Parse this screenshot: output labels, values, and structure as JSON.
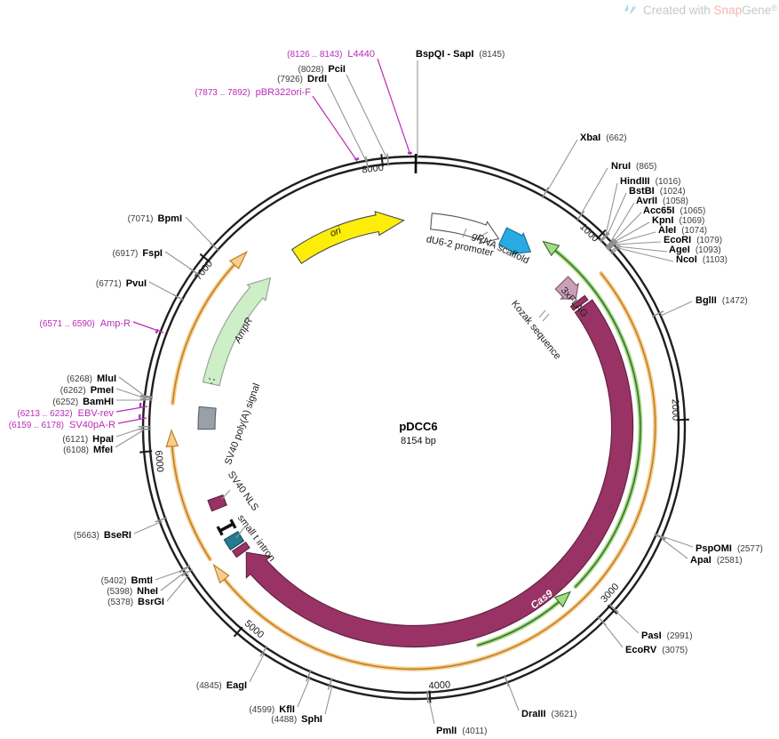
{
  "watermark": {
    "created_with": "Created with ",
    "brand_snap": "Snap",
    "brand_gene": "Gene",
    "registered": "®"
  },
  "plasmid": {
    "name": "pDCC6",
    "size": "8154 bp"
  },
  "ruler": {
    "ticks": [
      "1000",
      "2000",
      "3000",
      "4000",
      "5000",
      "6000",
      "7000",
      "8000"
    ]
  },
  "features": {
    "du6": "dU6-2 promoter",
    "grna": "gRNA scaffold",
    "kozak": "Kozak sequence",
    "flag": "3xFLAG",
    "cas9": "Cas9",
    "small_t": "small t intron",
    "sv40_nls": "SV40 NLS",
    "sv40_polya": "SV40 poly(A) signal",
    "ampr": "AmpR",
    "ori": "ori"
  },
  "sites": {
    "bspqi_sapi": {
      "name": "BspQI - SapI",
      "pos": "(8145)"
    },
    "l4440_note": {
      "name": "L4440",
      "pos": "(8126 .. 8143)"
    },
    "pcii": {
      "name": "PciI",
      "pos": "(8028)"
    },
    "drdi": {
      "name": "DrdI",
      "pos": "(7926)"
    },
    "pbr322": {
      "name": "pBR322ori-F",
      "pos": "(7873 .. 7892)"
    },
    "xbai": {
      "name": "XbaI",
      "pos": "(662)"
    },
    "nrui": {
      "name": "NruI",
      "pos": "(865)"
    },
    "hindiii": {
      "name": "HindIII",
      "pos": "(1016)"
    },
    "bstbi": {
      "name": "BstBI",
      "pos": "(1024)"
    },
    "avrii": {
      "name": "AvrII",
      "pos": "(1058)"
    },
    "acc65i": {
      "name": "Acc65I",
      "pos": "(1065)"
    },
    "kpni": {
      "name": "KpnI",
      "pos": "(1069)"
    },
    "alei": {
      "name": "AleI",
      "pos": "(1074)"
    },
    "ecori": {
      "name": "EcoRI",
      "pos": "(1079)"
    },
    "agei": {
      "name": "AgeI",
      "pos": "(1093)"
    },
    "ncoi": {
      "name": "NcoI",
      "pos": "(1103)"
    },
    "bglii": {
      "name": "BglII",
      "pos": "(1472)"
    },
    "pspomi": {
      "name": "PspOMI",
      "pos": "(2577)"
    },
    "apai": {
      "name": "ApaI",
      "pos": "(2581)"
    },
    "pasi": {
      "name": "PasI",
      "pos": "(2991)"
    },
    "ecorv": {
      "name": "EcoRV",
      "pos": "(3075)"
    },
    "draiii": {
      "name": "DraIII",
      "pos": "(3621)"
    },
    "pmli": {
      "name": "PmlI",
      "pos": "(4011)"
    },
    "sphi": {
      "name": "SphI",
      "pos": "(4488)"
    },
    "kfli": {
      "name": "KflI",
      "pos": "(4599)"
    },
    "eagi": {
      "name": "EagI",
      "pos": "(4845)"
    },
    "bsrgi": {
      "name": "BsrGI",
      "pos": "(5378)"
    },
    "nhei": {
      "name": "NheI",
      "pos": "(5398)"
    },
    "bmti": {
      "name": "BmtI",
      "pos": "(5402)"
    },
    "bseri": {
      "name": "BseRI",
      "pos": "(5663)"
    },
    "mfei": {
      "name": "MfeI",
      "pos": "(6108)"
    },
    "hpai": {
      "name": "HpaI",
      "pos": "(6121)"
    },
    "bamhi": {
      "name": "BamHI",
      "pos": "(6252)"
    },
    "pmei": {
      "name": "PmeI",
      "pos": "(6262)"
    },
    "mlui": {
      "name": "MluI",
      "pos": "(6268)"
    },
    "pvui": {
      "name": "PvuI",
      "pos": "(6771)"
    },
    "fspi": {
      "name": "FspI",
      "pos": "(6917)"
    },
    "bpmi": {
      "name": "BpmI",
      "pos": "(7071)"
    }
  },
  "primers": {
    "l4440": {
      "range": "(8126 .. 8143)",
      "name": "L4440"
    },
    "pbr322ori_f": {
      "range": "(7873 .. 7892)",
      "name": "pBR322ori-F"
    },
    "amp_r": {
      "range": "(6571 .. 6590)",
      "name": "Amp-R"
    },
    "ebv_rev": {
      "range": "(6213 .. 6232)",
      "name": "EBV-rev"
    },
    "sv40pa_r": {
      "range": "(6159 .. 6178)",
      "name": "SV40pA-R"
    }
  },
  "colors": {
    "cas9": "#993365",
    "flag": "#c9a0b6",
    "intron_teal": "#267c8e",
    "polya_gray": "#9aa0a7",
    "ampr_fill": "#cdeec6",
    "ori_yellow": "#fdee0a",
    "grna_blue": "#29abe2",
    "du6_white": "#ffffff",
    "orf_light": "#a2dd80",
    "orf_dark": "#3e6f34",
    "misc_light": "#f6cf90",
    "misc_dark": "#c07f28",
    "primer_magenta": "#b92cb9",
    "backbone": "#1f1f1f",
    "wm_gray": "#c8c8c8",
    "wm_red": "#f2b4b1",
    "wm_blue": "#a9d8ee"
  }
}
